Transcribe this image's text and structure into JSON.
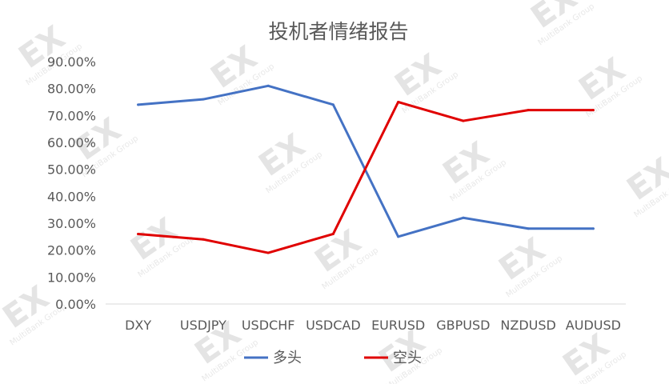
{
  "watermark": {
    "logo_text": "EX",
    "sub_text": "MultiBank Group"
  },
  "chart_data": {
    "type": "line",
    "title": "投机者情绪报告",
    "xlabel": "",
    "ylabel": "",
    "categories": [
      "DXY",
      "USDJPY",
      "USDCHF",
      "USDCAD",
      "EURUSD",
      "GBPUSD",
      "NZDUSD",
      "AUDUSD"
    ],
    "y_tick_labels": [
      "0.00%",
      "10.00%",
      "20.00%",
      "30.00%",
      "40.00%",
      "50.00%",
      "60.00%",
      "70.00%",
      "80.00%",
      "90.00%"
    ],
    "ylim": [
      0,
      90
    ],
    "y_unit": "percent",
    "grid": false,
    "legend_position": "bottom",
    "series": [
      {
        "name": "多头",
        "color": "#4472C4",
        "values": [
          74,
          76,
          81,
          74,
          25,
          32,
          28,
          28
        ]
      },
      {
        "name": "空头",
        "color": "#E00000",
        "values": [
          26,
          24,
          19,
          26,
          75,
          68,
          72,
          72
        ]
      }
    ],
    "axis_color": "#d9d9d9",
    "text_color": "#595959"
  }
}
